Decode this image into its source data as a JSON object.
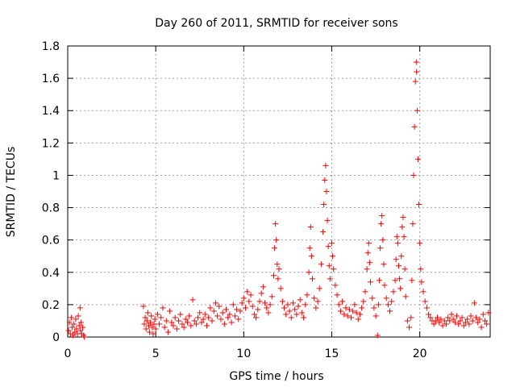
{
  "chart_data": {
    "type": "scatter",
    "title": "Day 260 of 2011, SRMTID for receiver sons",
    "xlabel": "GPS time / hours",
    "ylabel": "SRMTID / TECUs",
    "xlim": [
      0,
      24
    ],
    "ylim": [
      0,
      1.8
    ],
    "xticks": [
      0,
      5,
      10,
      15,
      20
    ],
    "yticks": [
      0,
      0.2,
      0.4,
      0.6,
      0.8,
      1,
      1.2,
      1.4,
      1.6,
      1.8
    ],
    "xtick_labels": [
      "0",
      "5",
      "10",
      "15",
      "20"
    ],
    "ytick_labels": [
      "0",
      "0.2",
      "0.4",
      "0.6",
      "0.8",
      "1",
      "1.2",
      "1.4",
      "1.6",
      "1.8"
    ],
    "grid": true,
    "marker": "+",
    "series": [
      {
        "name": "SRMTID",
        "color": "#ff0000",
        "points": [
          [
            0.05,
            0.04
          ],
          [
            0.1,
            0.09
          ],
          [
            0.15,
            0.02
          ],
          [
            0.2,
            0.12
          ],
          [
            0.25,
            0.06
          ],
          [
            0.3,
            0.01
          ],
          [
            0.35,
            0.08
          ],
          [
            0.4,
            0.03
          ],
          [
            0.45,
            0.11
          ],
          [
            0.5,
            0.05
          ],
          [
            0.55,
            0.02
          ],
          [
            0.6,
            0.13
          ],
          [
            0.65,
            0.07
          ],
          [
            0.7,
            0.18
          ],
          [
            0.72,
            0.04
          ],
          [
            0.75,
            0.09
          ],
          [
            0.8,
            0.02
          ],
          [
            0.85,
            0.06
          ],
          [
            0.9,
            0.01
          ],
          [
            0.95,
            0.0
          ],
          [
            4.3,
            0.19
          ],
          [
            4.35,
            0.08
          ],
          [
            4.4,
            0.12
          ],
          [
            4.45,
            0.05
          ],
          [
            4.5,
            0.1
          ],
          [
            4.55,
            0.15
          ],
          [
            4.6,
            0.07
          ],
          [
            4.65,
            0.03
          ],
          [
            4.7,
            0.09
          ],
          [
            4.75,
            0.13
          ],
          [
            4.8,
            0.06
          ],
          [
            4.85,
            0.02
          ],
          [
            4.9,
            0.08
          ],
          [
            4.95,
            0.11
          ],
          [
            5.0,
            0.05
          ],
          [
            5.1,
            0.14
          ],
          [
            5.2,
            0.08
          ],
          [
            5.3,
            0.12
          ],
          [
            5.4,
            0.18
          ],
          [
            5.5,
            0.06
          ],
          [
            5.6,
            0.1
          ],
          [
            5.7,
            0.03
          ],
          [
            5.8,
            0.16
          ],
          [
            5.9,
            0.09
          ],
          [
            6.0,
            0.07
          ],
          [
            6.1,
            0.12
          ],
          [
            6.2,
            0.05
          ],
          [
            6.3,
            0.1
          ],
          [
            6.4,
            0.14
          ],
          [
            6.5,
            0.08
          ],
          [
            6.6,
            0.06
          ],
          [
            6.7,
            0.11
          ],
          [
            6.8,
            0.09
          ],
          [
            6.9,
            0.13
          ],
          [
            7.0,
            0.07
          ],
          [
            7.1,
            0.23
          ],
          [
            7.2,
            0.1
          ],
          [
            7.3,
            0.08
          ],
          [
            7.4,
            0.12
          ],
          [
            7.5,
            0.15
          ],
          [
            7.6,
            0.09
          ],
          [
            7.7,
            0.11
          ],
          [
            7.8,
            0.14
          ],
          [
            7.9,
            0.07
          ],
          [
            8.0,
            0.12
          ],
          [
            8.1,
            0.18
          ],
          [
            8.2,
            0.1
          ],
          [
            8.3,
            0.16
          ],
          [
            8.4,
            0.21
          ],
          [
            8.5,
            0.13
          ],
          [
            8.6,
            0.19
          ],
          [
            8.7,
            0.11
          ],
          [
            8.8,
            0.15
          ],
          [
            8.9,
            0.08
          ],
          [
            9.0,
            0.17
          ],
          [
            9.1,
            0.12
          ],
          [
            9.2,
            0.14
          ],
          [
            9.3,
            0.09
          ],
          [
            9.4,
            0.2
          ],
          [
            9.5,
            0.13
          ],
          [
            9.6,
            0.17
          ],
          [
            9.7,
            0.11
          ],
          [
            9.8,
            0.16
          ],
          [
            9.9,
            0.21
          ],
          [
            10.0,
            0.24
          ],
          [
            10.1,
            0.18
          ],
          [
            10.2,
            0.28
          ],
          [
            10.3,
            0.22
          ],
          [
            10.4,
            0.26
          ],
          [
            10.5,
            0.19
          ],
          [
            10.6,
            0.14
          ],
          [
            10.7,
            0.12
          ],
          [
            10.8,
            0.17
          ],
          [
            10.9,
            0.22
          ],
          [
            11.0,
            0.27
          ],
          [
            11.1,
            0.31
          ],
          [
            11.2,
            0.21
          ],
          [
            11.3,
            0.18
          ],
          [
            11.4,
            0.15
          ],
          [
            11.5,
            0.2
          ],
          [
            11.6,
            0.25
          ],
          [
            11.7,
            0.38
          ],
          [
            11.75,
            0.55
          ],
          [
            11.8,
            0.7
          ],
          [
            11.85,
            0.6
          ],
          [
            11.9,
            0.45
          ],
          [
            11.95,
            0.36
          ],
          [
            12.0,
            0.42
          ],
          [
            12.1,
            0.3
          ],
          [
            12.2,
            0.22
          ],
          [
            12.3,
            0.18
          ],
          [
            12.4,
            0.14
          ],
          [
            12.5,
            0.2
          ],
          [
            12.6,
            0.16
          ],
          [
            12.7,
            0.12
          ],
          [
            12.8,
            0.21
          ],
          [
            12.9,
            0.17
          ],
          [
            13.0,
            0.14
          ],
          [
            13.1,
            0.19
          ],
          [
            13.2,
            0.23
          ],
          [
            13.3,
            0.15
          ],
          [
            13.4,
            0.12
          ],
          [
            13.5,
            0.2
          ],
          [
            13.6,
            0.26
          ],
          [
            13.7,
            0.4
          ],
          [
            13.75,
            0.55
          ],
          [
            13.8,
            0.68
          ],
          [
            13.85,
            0.5
          ],
          [
            13.9,
            0.36
          ],
          [
            14.0,
            0.24
          ],
          [
            14.1,
            0.18
          ],
          [
            14.2,
            0.22
          ],
          [
            14.3,
            0.3
          ],
          [
            14.4,
            0.45
          ],
          [
            14.5,
            0.65
          ],
          [
            14.55,
            0.82
          ],
          [
            14.6,
            0.97
          ],
          [
            14.65,
            1.06
          ],
          [
            14.7,
            0.9
          ],
          [
            14.75,
            0.72
          ],
          [
            14.8,
            0.56
          ],
          [
            14.85,
            0.44
          ],
          [
            14.9,
            0.36
          ],
          [
            15.0,
            0.58
          ],
          [
            15.05,
            0.5
          ],
          [
            15.1,
            0.42
          ],
          [
            15.2,
            0.32
          ],
          [
            15.3,
            0.26
          ],
          [
            15.4,
            0.2
          ],
          [
            15.5,
            0.16
          ],
          [
            15.6,
            0.22
          ],
          [
            15.7,
            0.14
          ],
          [
            15.8,
            0.18
          ],
          [
            15.9,
            0.13
          ],
          [
            16.0,
            0.17
          ],
          [
            16.1,
            0.12
          ],
          [
            16.2,
            0.16
          ],
          [
            16.3,
            0.2
          ],
          [
            16.4,
            0.15
          ],
          [
            16.5,
            0.11
          ],
          [
            16.6,
            0.14
          ],
          [
            16.7,
            0.18
          ],
          [
            16.8,
            0.22
          ],
          [
            16.9,
            0.28
          ],
          [
            17.0,
            0.42
          ],
          [
            17.05,
            0.52
          ],
          [
            17.1,
            0.58
          ],
          [
            17.15,
            0.46
          ],
          [
            17.2,
            0.34
          ],
          [
            17.3,
            0.24
          ],
          [
            17.4,
            0.18
          ],
          [
            17.5,
            0.13
          ],
          [
            17.6,
            0.01
          ],
          [
            17.65,
            0.2
          ],
          [
            17.7,
            0.35
          ],
          [
            17.75,
            0.55
          ],
          [
            17.8,
            0.7
          ],
          [
            17.85,
            0.75
          ],
          [
            17.9,
            0.6
          ],
          [
            17.95,
            0.45
          ],
          [
            18.0,
            0.32
          ],
          [
            18.1,
            0.24
          ],
          [
            18.2,
            0.2
          ],
          [
            18.3,
            0.16
          ],
          [
            18.4,
            0.22
          ],
          [
            18.5,
            0.28
          ],
          [
            18.6,
            0.35
          ],
          [
            18.65,
            0.48
          ],
          [
            18.7,
            0.62
          ],
          [
            18.75,
            0.58
          ],
          [
            18.8,
            0.44
          ],
          [
            18.85,
            0.36
          ],
          [
            18.9,
            0.3
          ],
          [
            18.95,
            0.5
          ],
          [
            19.0,
            0.68
          ],
          [
            19.05,
            0.74
          ],
          [
            19.1,
            0.62
          ],
          [
            19.15,
            0.42
          ],
          [
            19.2,
            0.25
          ],
          [
            19.3,
            0.1
          ],
          [
            19.4,
            0.06
          ],
          [
            19.5,
            0.12
          ],
          [
            19.55,
            0.35
          ],
          [
            19.6,
            0.7
          ],
          [
            19.65,
            1.0
          ],
          [
            19.7,
            1.3
          ],
          [
            19.75,
            1.58
          ],
          [
            19.8,
            1.7
          ],
          [
            19.82,
            1.64
          ],
          [
            19.85,
            1.4
          ],
          [
            19.9,
            1.1
          ],
          [
            19.95,
            0.82
          ],
          [
            20.0,
            0.58
          ],
          [
            20.05,
            0.42
          ],
          [
            20.1,
            0.34
          ],
          [
            20.2,
            0.28
          ],
          [
            20.3,
            0.22
          ],
          [
            20.4,
            0.18
          ],
          [
            20.5,
            0.14
          ],
          [
            20.6,
            0.12
          ],
          [
            20.7,
            0.1
          ],
          [
            20.8,
            0.08
          ],
          [
            20.9,
            0.1
          ],
          [
            21.0,
            0.12
          ],
          [
            21.1,
            0.09
          ],
          [
            21.2,
            0.11
          ],
          [
            21.3,
            0.07
          ],
          [
            21.4,
            0.1
          ],
          [
            21.5,
            0.08
          ],
          [
            21.6,
            0.12
          ],
          [
            21.7,
            0.1
          ],
          [
            21.8,
            0.14
          ],
          [
            21.9,
            0.11
          ],
          [
            22.0,
            0.09
          ],
          [
            22.1,
            0.13
          ],
          [
            22.2,
            0.08
          ],
          [
            22.3,
            0.1
          ],
          [
            22.4,
            0.12
          ],
          [
            22.5,
            0.07
          ],
          [
            22.6,
            0.09
          ],
          [
            22.7,
            0.11
          ],
          [
            22.8,
            0.08
          ],
          [
            22.9,
            0.13
          ],
          [
            23.0,
            0.1
          ],
          [
            23.1,
            0.21
          ],
          [
            23.2,
            0.12
          ],
          [
            23.3,
            0.09
          ],
          [
            23.4,
            0.11
          ],
          [
            23.5,
            0.06
          ],
          [
            23.6,
            0.14
          ],
          [
            23.7,
            0.1
          ],
          [
            23.8,
            0.08
          ],
          [
            23.9,
            0.15
          ]
        ]
      }
    ]
  }
}
